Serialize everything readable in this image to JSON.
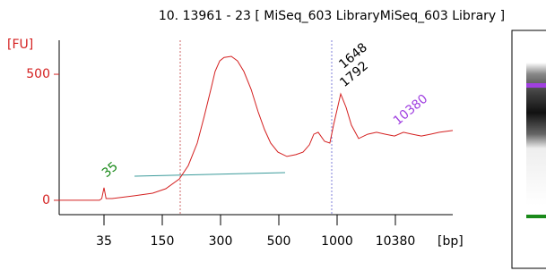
{
  "chart_data": {
    "type": "line",
    "title": "10. 13961 - 23  [ MiSeq_603 LibraryMiSeq_603 Library ]",
    "y_label": "[FU]",
    "x_label": "[bp]",
    "x": [
      15,
      33,
      34,
      35,
      39,
      51,
      95,
      131,
      159,
      194,
      217,
      240,
      258,
      275,
      286,
      298,
      312,
      337,
      358,
      380,
      405,
      429,
      451,
      472,
      497,
      569,
      646,
      708,
      762,
      800,
      838,
      892,
      938,
      969,
      1577,
      2443,
      3309,
      4463,
      5906,
      7349,
      8792,
      10235,
      11030,
      11752,
      12474,
      13196,
      13918,
      15000
    ],
    "series": [
      {
        "name": "[FU]",
        "color": "#d42020",
        "values": [
          0,
          0,
          7,
          50,
          7,
          7,
          18,
          28,
          46,
          85,
          138,
          227,
          333,
          440,
          511,
          553,
          567,
          571,
          553,
          511,
          440,
          351,
          280,
          227,
          191,
          174,
          181,
          191,
          220,
          262,
          270,
          234,
          227,
          298,
          422,
          369,
          298,
          245,
          262,
          270,
          262,
          255,
          270,
          262,
          255,
          262,
          270,
          277
        ]
      }
    ],
    "xlim": [
      15,
      15000
    ],
    "xticks": [
      35,
      150,
      300,
      500,
      1000,
      10380
    ],
    "ylim": [
      -57,
      635
    ],
    "yticks": [
      0,
      500
    ],
    "peak_labels": [
      35,
      1792,
      1648,
      10380
    ],
    "peak_label_colors": [
      "#1a8a1a",
      "#000000",
      "#000000",
      "#a040e0"
    ]
  }
}
